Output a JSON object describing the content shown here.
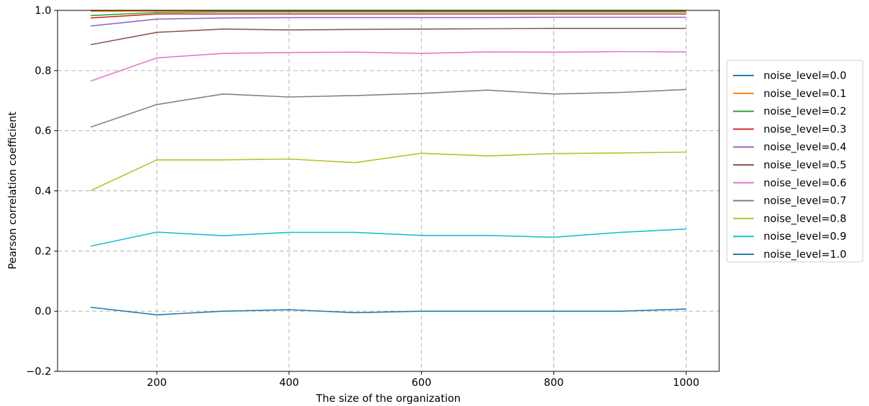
{
  "chart_data": {
    "type": "line",
    "title": "",
    "xlabel": "The size of the organization",
    "ylabel": "Pearson correlation coefficient",
    "xlim": [
      50,
      1050
    ],
    "ylim": [
      -0.2,
      1.0
    ],
    "xticks": [
      "200",
      "400",
      "600",
      "800",
      "1000"
    ],
    "yticks": [
      "−0.2",
      "0.0",
      "0.2",
      "0.4",
      "0.6",
      "0.8",
      "1.0"
    ],
    "grid": true,
    "legend_position": "right-outside",
    "x": [
      100,
      200,
      300,
      400,
      500,
      600,
      700,
      800,
      900,
      1000
    ],
    "series": [
      {
        "name": "noise_level=0.0",
        "color": "#1f77b4",
        "values": [
          1.0,
          1.0,
          1.0,
          1.0,
          1.0,
          1.0,
          1.0,
          1.0,
          1.0,
          1.0
        ]
      },
      {
        "name": "noise_level=0.1",
        "color": "#ff7f0e",
        "values": [
          0.997,
          0.998,
          0.998,
          0.998,
          0.998,
          0.998,
          0.998,
          0.998,
          0.998,
          0.998
        ]
      },
      {
        "name": "noise_level=0.2",
        "color": "#2ca02c",
        "values": [
          0.983,
          0.993,
          0.995,
          0.995,
          0.995,
          0.995,
          0.995,
          0.995,
          0.995,
          0.995
        ]
      },
      {
        "name": "noise_level=0.3",
        "color": "#d62728",
        "values": [
          0.975,
          0.988,
          0.988,
          0.988,
          0.988,
          0.988,
          0.988,
          0.988,
          0.988,
          0.988
        ]
      },
      {
        "name": "noise_level=0.4",
        "color": "#9467bd",
        "values": [
          0.948,
          0.971,
          0.975,
          0.976,
          0.976,
          0.976,
          0.976,
          0.977,
          0.977,
          0.977
        ]
      },
      {
        "name": "noise_level=0.5",
        "color": "#8c564b",
        "values": [
          0.886,
          0.927,
          0.938,
          0.935,
          0.937,
          0.938,
          0.939,
          0.94,
          0.94,
          0.94
        ]
      },
      {
        "name": "noise_level=0.6",
        "color": "#e377c2",
        "values": [
          0.765,
          0.842,
          0.857,
          0.86,
          0.861,
          0.857,
          0.862,
          0.861,
          0.863,
          0.862
        ]
      },
      {
        "name": "noise_level=0.7",
        "color": "#7f7f7f",
        "values": [
          0.612,
          0.687,
          0.722,
          0.712,
          0.717,
          0.724,
          0.735,
          0.722,
          0.727,
          0.737
        ]
      },
      {
        "name": "noise_level=0.8",
        "color": "#bcbd22",
        "values": [
          0.401,
          0.503,
          0.503,
          0.506,
          0.494,
          0.525,
          0.516,
          0.524,
          0.526,
          0.529
        ]
      },
      {
        "name": "noise_level=0.9",
        "color": "#17becf",
        "values": [
          0.216,
          0.263,
          0.251,
          0.262,
          0.262,
          0.252,
          0.252,
          0.246,
          0.262,
          0.273
        ]
      },
      {
        "name": "noise_level=1.0",
        "color": "#1f77b4",
        "values": [
          0.013,
          -0.012,
          0.0,
          0.005,
          -0.005,
          0.0,
          0.0,
          0.0,
          0.0,
          0.007
        ]
      }
    ]
  }
}
